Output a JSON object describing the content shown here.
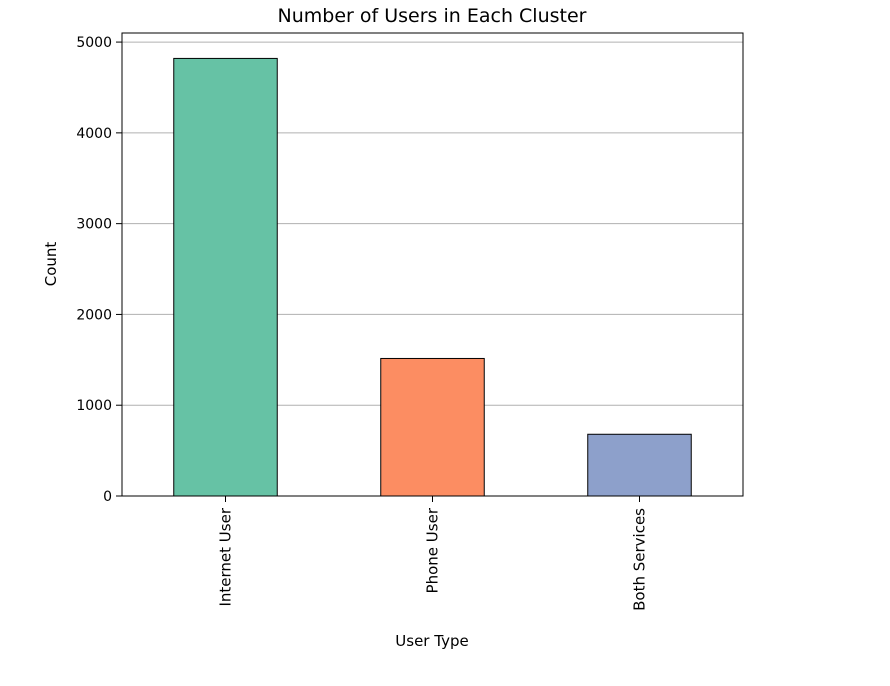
{
  "chart_data": {
    "type": "bar",
    "title": "Number of Users in Each Cluster",
    "xlabel": "User Type",
    "ylabel": "Count",
    "categories": [
      "Internet User",
      "Phone User",
      "Both Services"
    ],
    "values": [
      4820,
      1515,
      680
    ],
    "colors": [
      "#66c2a5",
      "#fc8d62",
      "#8da0cb"
    ],
    "edge_color": "#000000",
    "grid_color": "#b0b0b0",
    "ylim": [
      0,
      5100
    ],
    "yticks": [
      0,
      1000,
      2000,
      3000,
      4000,
      5000
    ],
    "grid": "horizontal",
    "legend": "none"
  }
}
